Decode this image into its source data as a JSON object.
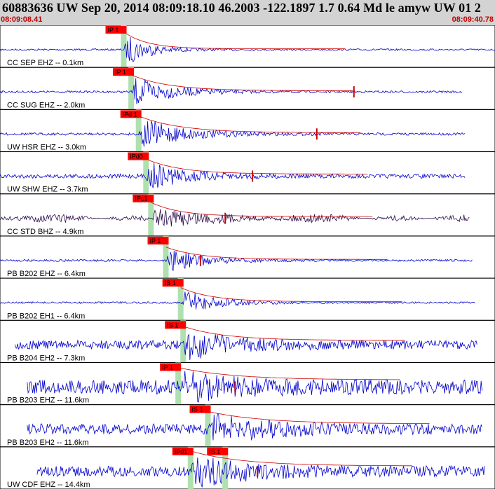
{
  "header": {
    "title": "60883636 UW Sep 20, 2014 08:09:18.10    46.2003 -122.1897  1.7 0.64 Md le amyw UW 01   2",
    "time_start": "08:09:08.41",
    "time_end": "08:09:40.78"
  },
  "colors": {
    "header_bg": "#d3d3d3",
    "trace": "#0000cc",
    "trace_dark": "#2a0a4a",
    "pick_box": "#ff0000",
    "pick_window": "#b0e0b0",
    "envelope": "#cc0000",
    "time_label": "#c00000"
  },
  "chart_data": {
    "type": "line",
    "x_range_time": [
      "08:09:08.41",
      "08:09:40.78"
    ],
    "stations": [
      {
        "label": "CC SEP EHZ -- 0.1km",
        "p_pick": "IP 1",
        "s_pick": "",
        "p_x": 0.25,
        "s_x": null,
        "amp": 0.95,
        "noise": 0.05,
        "decay": 3.5,
        "coda_flat": true,
        "mark_x": null,
        "dark": false,
        "start": 0.0,
        "end": 1.0
      },
      {
        "label": "CC SUG EHZ -- 2.0km",
        "p_pick": "IP 1",
        "s_pick": "",
        "p_x": 0.265,
        "s_x": null,
        "amp": 0.9,
        "noise": 0.06,
        "decay": 2.2,
        "coda_flat": false,
        "mark_x": 0.715,
        "dark": false,
        "start": 0.0,
        "end": 0.935
      },
      {
        "label": "UW HSR EHZ -- 3.0km",
        "p_pick": "IPd 1",
        "s_pick": "",
        "p_x": 0.28,
        "s_x": null,
        "amp": 0.95,
        "noise": 0.07,
        "decay": 2.0,
        "coda_flat": false,
        "mark_x": 0.64,
        "dark": false,
        "start": 0.0,
        "end": 0.94
      },
      {
        "label": "UW SHW EHZ -- 3.7km",
        "p_pick": "IPd0",
        "s_pick": "",
        "p_x": 0.295,
        "s_x": null,
        "amp": 0.85,
        "noise": 0.12,
        "decay": 2.4,
        "coda_flat": false,
        "mark_x": 0.51,
        "dark": false,
        "start": 0.0,
        "end": 0.94
      },
      {
        "label": "CC STD BHZ -- 4.9km",
        "p_pick": "IPc1",
        "s_pick": "",
        "p_x": 0.305,
        "s_x": null,
        "amp": 0.8,
        "noise": 0.1,
        "decay": 2.8,
        "coda_flat": false,
        "mark_x": 0.455,
        "dark": true,
        "start": 0.0,
        "end": 0.95
      },
      {
        "label": "PB B202 EHZ -- 6.4km",
        "p_pick": "IP 1",
        "s_pick": "",
        "p_x": 0.335,
        "s_x": null,
        "amp": 0.7,
        "noise": 0.06,
        "decay": 2.5,
        "coda_flat": false,
        "mark_x": 0.405,
        "dark": false,
        "start": 0.0,
        "end": 0.955
      },
      {
        "label": "PB B202 EH1 -- 6.4km",
        "p_pick": "",
        "s_pick": "IS 1",
        "p_x": null,
        "s_x": 0.365,
        "amp": 0.8,
        "noise": 0.05,
        "decay": 2.6,
        "coda_flat": false,
        "mark_x": null,
        "dark": false,
        "start": 0.0,
        "end": 0.96
      },
      {
        "label": "PB B204 EH2 -- 7.3km",
        "p_pick": "",
        "s_pick": "IS 1",
        "p_x": null,
        "s_x": 0.37,
        "amp": 0.8,
        "noise": 0.25,
        "decay": 2.0,
        "coda_flat": false,
        "mark_x": null,
        "dark": false,
        "start": 0.03,
        "end": 0.965
      },
      {
        "label": "PB B203 EHZ -- 11.6km",
        "p_pick": "IP 1",
        "s_pick": "",
        "p_x": 0.36,
        "s_x": null,
        "amp": 0.7,
        "noise": 0.4,
        "decay": 1.5,
        "coda_flat": false,
        "mark_x": 0.475,
        "dark": false,
        "start": 0.055,
        "end": 0.975
      },
      {
        "label": "PB B203 EH2 -- 11.6km",
        "p_pick": "",
        "s_pick": "IS 1",
        "p_x": null,
        "s_x": 0.42,
        "amp": 0.7,
        "noise": 0.3,
        "decay": 1.5,
        "coda_flat": false,
        "mark_x": null,
        "dark": false,
        "start": 0.055,
        "end": 0.975
      },
      {
        "label": "UW CDF EHZ -- 14.4km",
        "p_pick": "IPd1",
        "s_pick": "IS 1",
        "p_x": 0.385,
        "s_x": 0.455,
        "amp": 0.85,
        "noise": 0.3,
        "decay": 1.6,
        "coda_flat": false,
        "mark_x": 0.52,
        "dark": false,
        "start": 0.075,
        "end": 0.98
      }
    ]
  }
}
